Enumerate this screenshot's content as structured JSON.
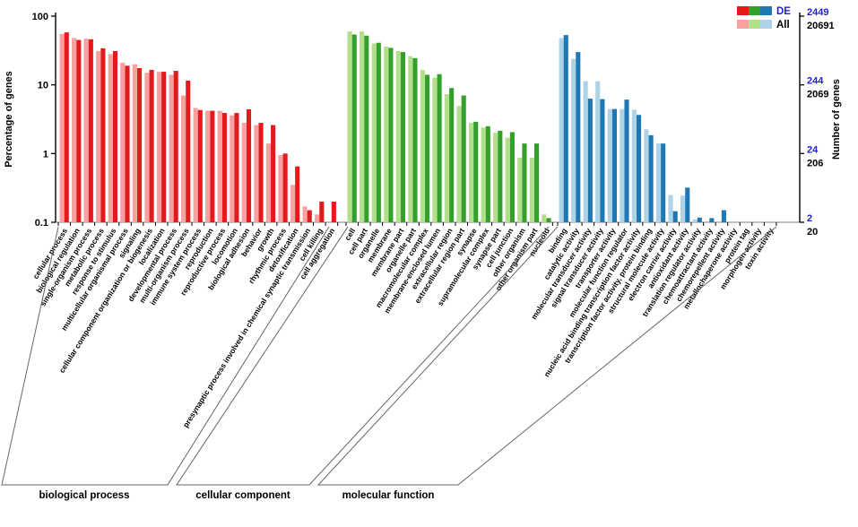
{
  "legend": {
    "de_label": "DE",
    "all_label": "All"
  },
  "colors": {
    "bp_de": "#e31a1c",
    "bp_all": "#f9a0a0",
    "cc_de": "#33a02c",
    "cc_all": "#b2df8a",
    "mf_de": "#1f78b4",
    "mf_all": "#aed2e6",
    "right_axis_de_text": "#2222cc",
    "axis": "#000000",
    "baseline": "#aaaaaa",
    "bracket": "#666666"
  },
  "chart_data": {
    "type": "bar",
    "y_scale": "log",
    "ylabel_left": "Percentage of genes",
    "ylabel_right": "Number of genes",
    "ylim": [
      0.1,
      100
    ],
    "left_ticks": [
      "100",
      "10",
      "1",
      "0.1"
    ],
    "right_ticks_de": [
      "2449",
      "244",
      "24",
      "2"
    ],
    "right_ticks_all": [
      "20691",
      "2069",
      "206",
      "20"
    ],
    "legend_entries": [
      "DE",
      "All"
    ],
    "groups": [
      {
        "name": "biological process",
        "color_de": "#e31a1c",
        "color_all": "#f9a0a0",
        "categories": [
          "cellular process",
          "biological regulation",
          "single-organism process",
          "metabolic process",
          "response to stimulus",
          "multicellular organismal process",
          "signaling",
          "cellular component organization or biogenesis",
          "localization",
          "developmental process",
          "multi-organism process",
          "immune system process",
          "reproduction",
          "reproductive process",
          "locomotion",
          "biological adhesion",
          "behavior",
          "growth",
          "rhythmic process",
          "detoxification",
          "presynaptic process involved in chemical synaptic transmission",
          "cell killing",
          "cell aggregation"
        ],
        "series": {
          "All": [
            55,
            48,
            47,
            31,
            28,
            21,
            20,
            15,
            15.5,
            14,
            7,
            4.6,
            4.2,
            4.2,
            3.6,
            2.8,
            2.6,
            1.4,
            0.95,
            0.35,
            0.17,
            0.13,
            null
          ],
          "DE": [
            58,
            45,
            46,
            34,
            31,
            19,
            17.5,
            16.5,
            15.5,
            16,
            11.5,
            4.3,
            4.2,
            3.9,
            3.9,
            4.4,
            2.8,
            2.6,
            1.0,
            0.65,
            0.15,
            0.2,
            0.2
          ]
        }
      },
      {
        "name": "cellular component",
        "color_de": "#33a02c",
        "color_all": "#b2df8a",
        "categories": [
          "cell",
          "cell part",
          "organelle",
          "membrane",
          "membrane part",
          "organelle part",
          "macromolecular complex",
          "membrane-enclosed lumen",
          "extracellular region",
          "extracellular region part",
          "synapse",
          "supramolecular complex",
          "synapse part",
          "cell junction",
          "other organism",
          "other organism part",
          "nucleoid"
        ],
        "series": {
          "All": [
            60,
            60,
            40,
            36,
            31,
            26,
            16.4,
            12.7,
            7.3,
            4.9,
            2.8,
            2.4,
            2.0,
            1.7,
            0.87,
            0.87,
            0.13
          ],
          "DE": [
            54,
            52,
            41,
            34.5,
            30,
            24.5,
            14,
            14.3,
            9,
            7,
            2.9,
            2.5,
            2.15,
            2.05,
            1.4,
            1.4,
            0.115
          ]
        }
      },
      {
        "name": "molecular function",
        "color_de": "#1f78b4",
        "color_all": "#aed2e6",
        "categories": [
          "binding",
          "catalytic activity",
          "molecular transducer activity",
          "signal transducer activity",
          "transporter activity",
          "molecular function regulator",
          "nucleic acid binding transcription factor activity",
          "transcription factor activity, protein binding",
          "structural molecule activity",
          "electron carrier activity",
          "antioxidant activity",
          "translation regulator activity",
          "chemoattractant activity",
          "chemorepellent activity",
          "metallochaperone activity",
          "protein tag",
          "morphogen activity",
          "toxin activity"
        ],
        "series": {
          "All": [
            48,
            24,
            11.3,
            11.3,
            4.45,
            4.45,
            4.35,
            2.25,
            1.4,
            0.25,
            0.245,
            0.11,
            null,
            null,
            null,
            null,
            null,
            null
          ],
          "DE": [
            53,
            30,
            6.3,
            6.2,
            4.45,
            6.1,
            3.65,
            1.85,
            1.4,
            0.145,
            0.32,
            0.117,
            0.115,
            0.15,
            null,
            null,
            null,
            null
          ]
        }
      }
    ]
  }
}
